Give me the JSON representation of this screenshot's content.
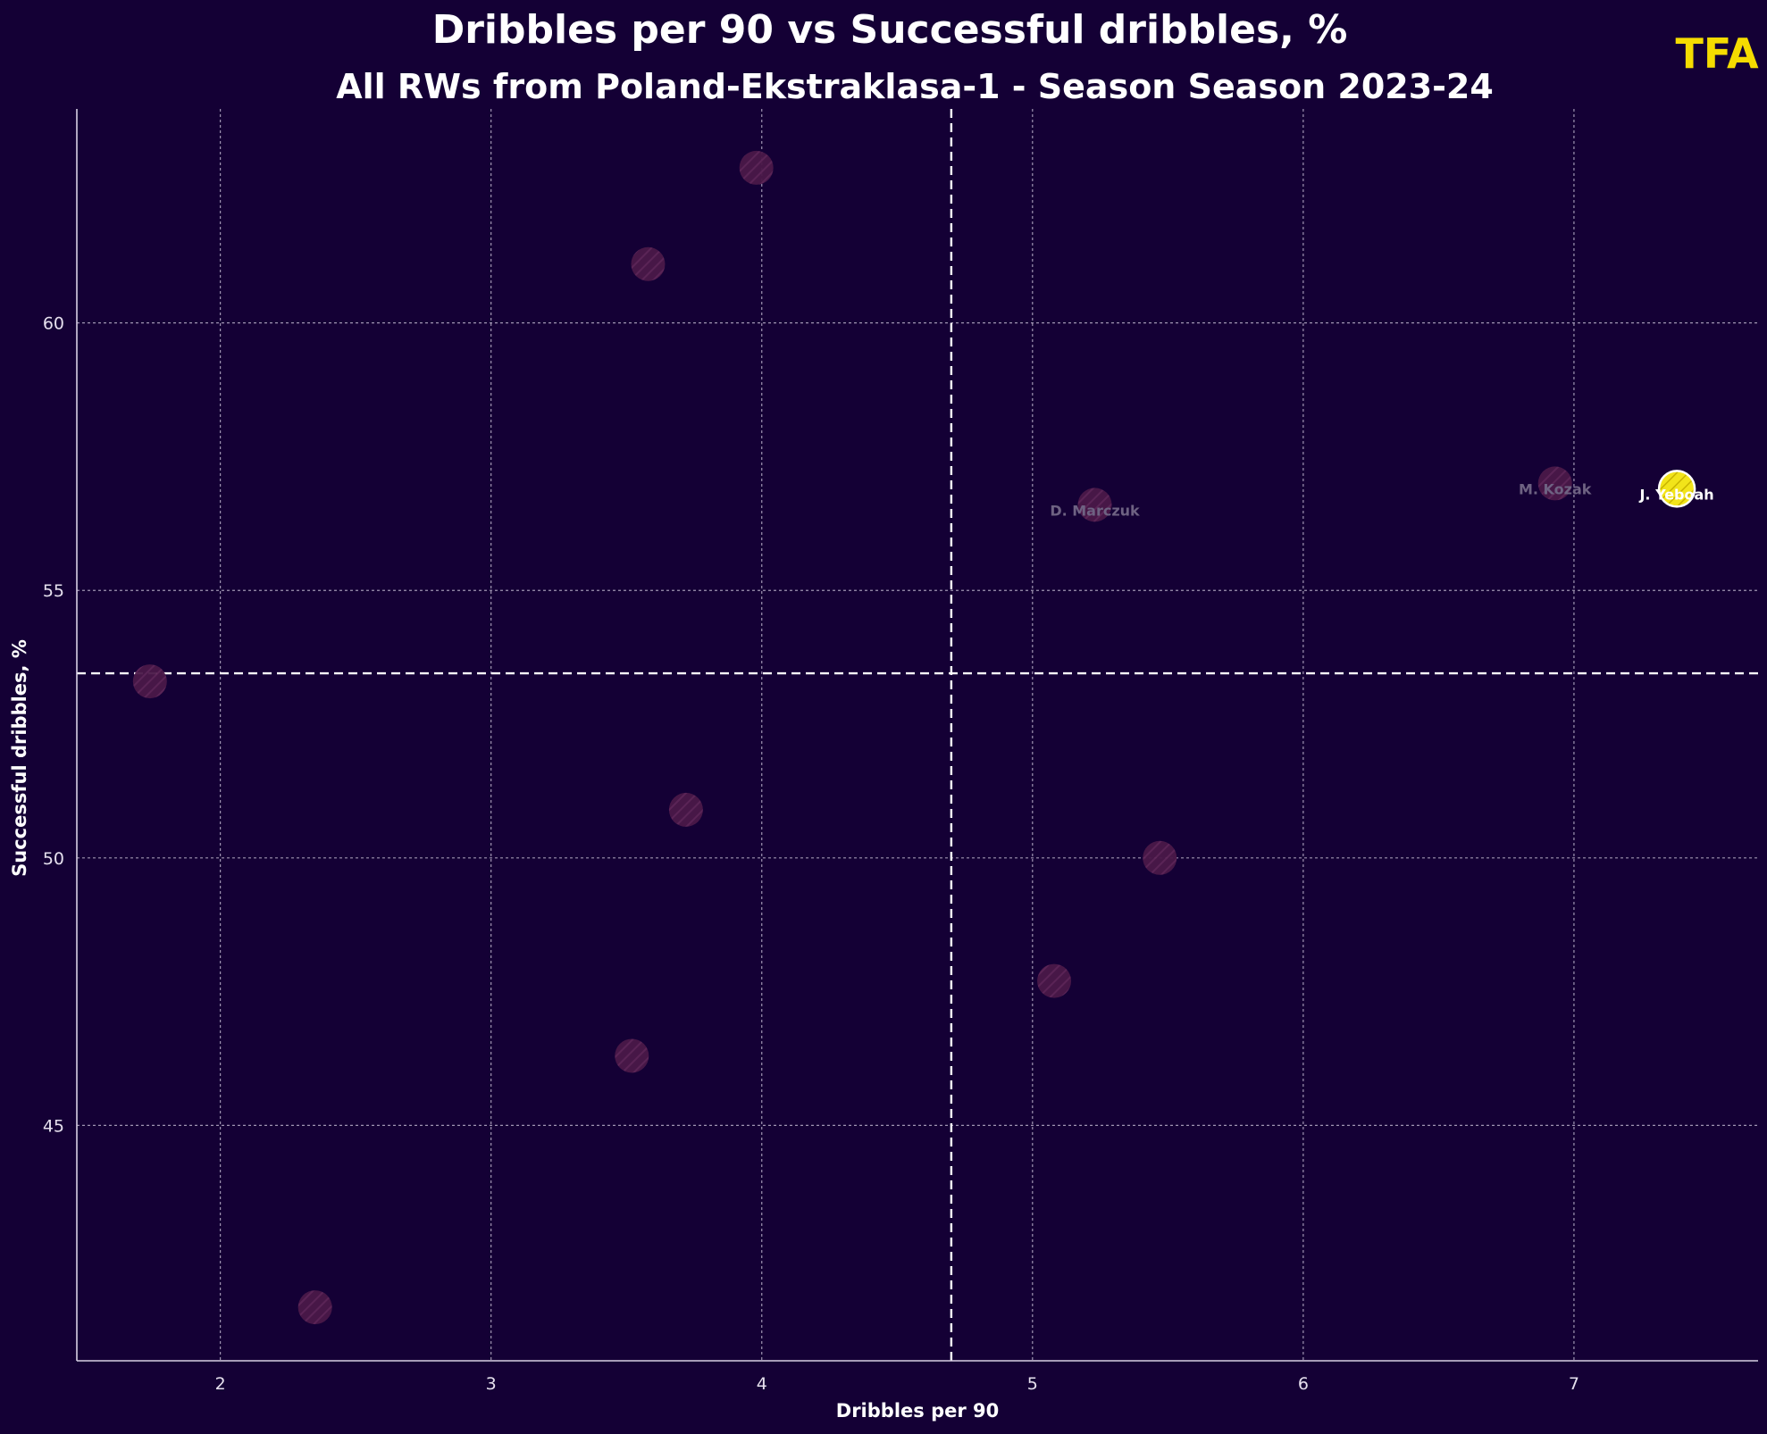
{
  "title": "Dribbles per 90 vs Successful dribbles, %",
  "subtitle": "All RWs from Poland-Ekstraklasa-1 - Season Season 2023-24",
  "logo": "TFA",
  "colors": {
    "background": "#140035",
    "grid": "#b9b0c8",
    "point": "#4a1848",
    "highlight": "#f2e41a",
    "logo": "#f5dc00"
  },
  "chart_data": {
    "type": "scatter",
    "title": "Dribbles per 90 vs Successful dribbles, %",
    "subtitle": "All RWs from Poland-Ekstraklasa-1 - Season Season 2023-24",
    "xlabel": "Dribbles per 90",
    "ylabel": "Successful dribbles, %",
    "xlim": [
      1.47,
      7.68
    ],
    "ylim": [
      40.6,
      64.0
    ],
    "xticks": [
      2,
      3,
      4,
      5,
      6,
      7
    ],
    "yticks": [
      45,
      50,
      55,
      60
    ],
    "grid": true,
    "reference_lines": {
      "x": 4.7,
      "y": 53.45
    },
    "points": [
      {
        "x": 1.74,
        "y": 53.3,
        "label": ""
      },
      {
        "x": 2.35,
        "y": 41.6,
        "label": ""
      },
      {
        "x": 3.52,
        "y": 46.3,
        "label": ""
      },
      {
        "x": 3.58,
        "y": 61.1,
        "label": ""
      },
      {
        "x": 3.72,
        "y": 50.9,
        "label": ""
      },
      {
        "x": 3.98,
        "y": 62.9,
        "label": ""
      },
      {
        "x": 5.08,
        "y": 47.7,
        "label": ""
      },
      {
        "x": 5.23,
        "y": 56.6,
        "label": "D. Marczuk"
      },
      {
        "x": 5.47,
        "y": 50.0,
        "label": ""
      },
      {
        "x": 6.93,
        "y": 57.0,
        "label": "M. Kozak"
      },
      {
        "x": 7.38,
        "y": 56.9,
        "label": "J. Yeboah",
        "highlight": true
      }
    ]
  }
}
